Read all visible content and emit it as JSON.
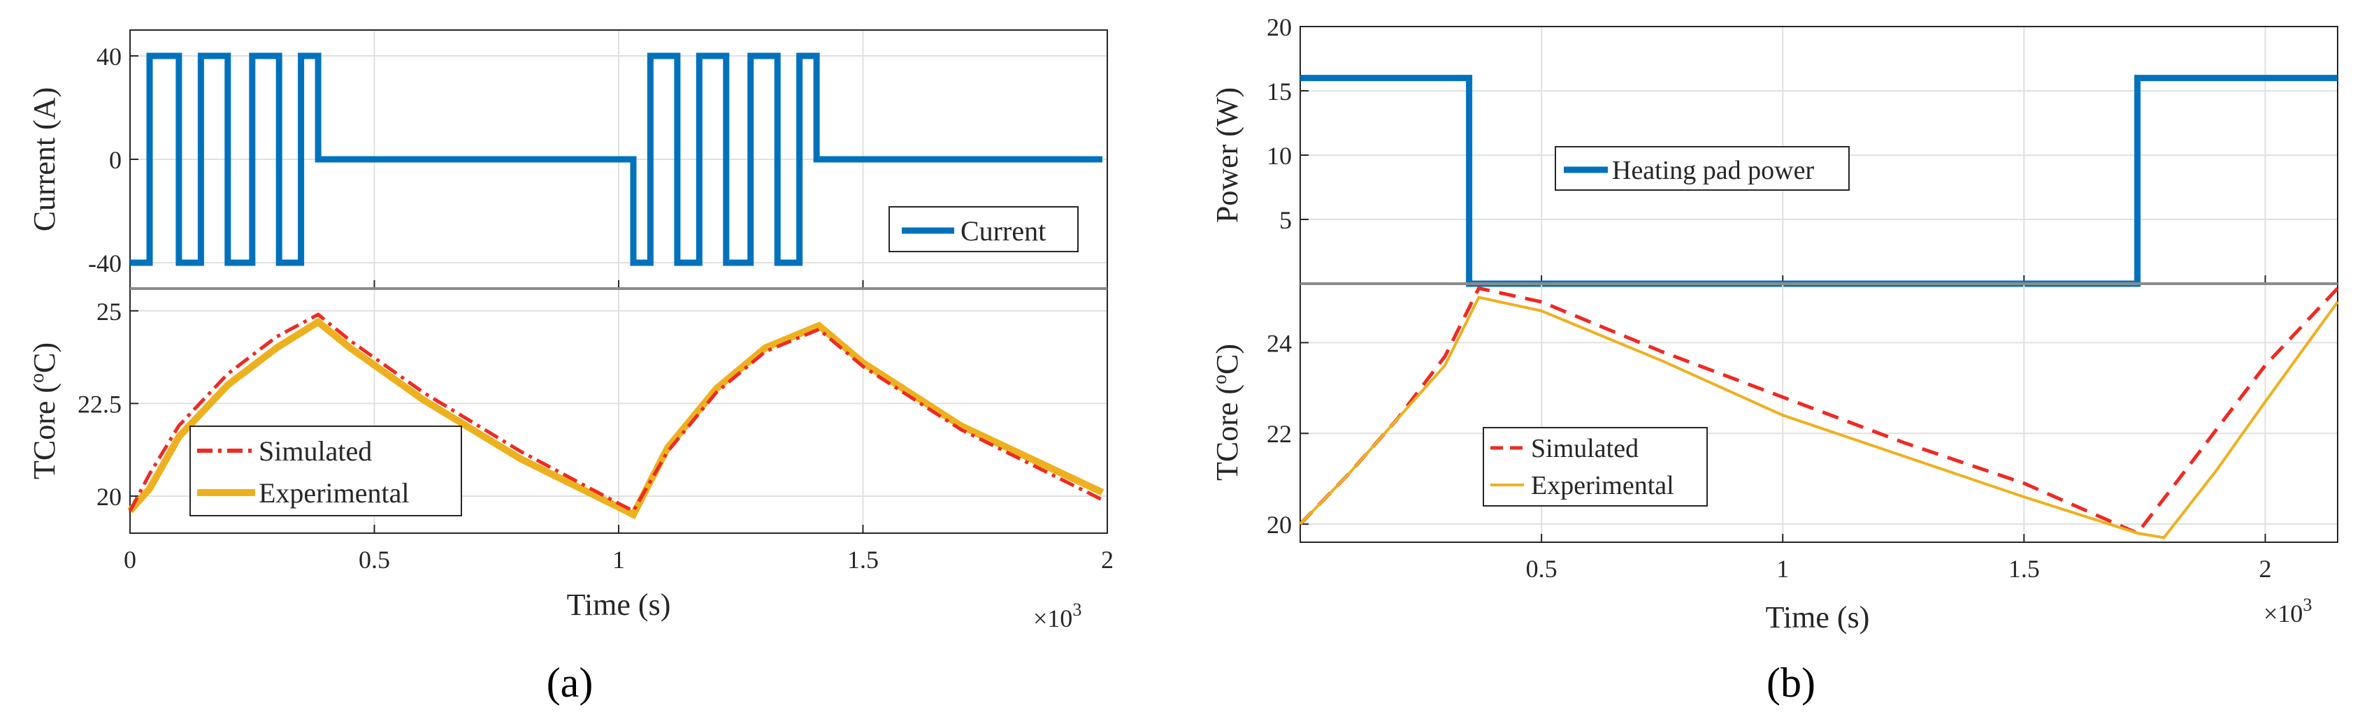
{
  "panels": {
    "a": {
      "label": "(a)"
    },
    "b": {
      "label": "(b)"
    }
  },
  "colors": {
    "blue": "#0072BD",
    "red": "#EE2A24",
    "orange": "#EDB120"
  },
  "chart_data": [
    {
      "type": "line",
      "panel": "a",
      "title": "",
      "xlabel": "Time (s)",
      "ylabel": "Current (A)",
      "x_multiplier": "×10",
      "x_multiplier_exp": "3",
      "xlim": [
        0,
        2
      ],
      "ylim": [
        -50,
        50
      ],
      "xticks": [
        0,
        0.5,
        1,
        1.5,
        2
      ],
      "xtick_labels": [
        "0",
        "0.5",
        "1",
        "1.5",
        "2"
      ],
      "yticks": [
        -40,
        0,
        40
      ],
      "ytick_labels": [
        "-40",
        "0",
        "40"
      ],
      "legend_position": "bottom-right",
      "series": [
        {
          "name": "Current",
          "color": "#0072BD",
          "x": [
            0,
            0.04,
            0.04,
            0.1,
            0.1,
            0.145,
            0.145,
            0.2,
            0.2,
            0.25,
            0.25,
            0.305,
            0.305,
            0.35,
            0.35,
            0.385,
            0.385,
            1.03,
            1.03,
            1.065,
            1.065,
            1.12,
            1.12,
            1.165,
            1.165,
            1.22,
            1.22,
            1.27,
            1.27,
            1.325,
            1.325,
            1.37,
            1.37,
            1.405,
            1.405,
            1.99
          ],
          "y": [
            -40,
            -40,
            40,
            40,
            -40,
            -40,
            40,
            40,
            -40,
            -40,
            40,
            40,
            -40,
            -40,
            40,
            40,
            0,
            0,
            -40,
            -40,
            40,
            40,
            -40,
            -40,
            40,
            40,
            -40,
            -40,
            40,
            40,
            -40,
            -40,
            40,
            40,
            0,
            0
          ]
        }
      ]
    },
    {
      "type": "line",
      "panel": "a",
      "title": "",
      "xlabel": "Time (s)",
      "ylabel": "TCore (°C)",
      "ylabel_main": "TCore (",
      "ylabel_sup": "o",
      "ylabel_tail": "C)",
      "xlim": [
        0,
        2
      ],
      "ylim": [
        19,
        25.6
      ],
      "xticks": [
        0,
        0.5,
        1,
        1.5,
        2
      ],
      "yticks": [
        20,
        22.5,
        25
      ],
      "ytick_labels": [
        "20",
        "22.5",
        "25"
      ],
      "legend_position": "bottom-left",
      "series": [
        {
          "name": "Simulated",
          "color": "#EE2A24",
          "style": "dashdot",
          "x": [
            0,
            0.04,
            0.1,
            0.2,
            0.3,
            0.385,
            0.45,
            0.6,
            0.8,
            1.0,
            1.03,
            1.1,
            1.2,
            1.3,
            1.41,
            1.5,
            1.7,
            1.99
          ],
          "y": [
            19.6,
            20.6,
            21.9,
            23.3,
            24.3,
            24.9,
            24.2,
            22.8,
            21.2,
            19.8,
            19.6,
            21.2,
            22.8,
            23.9,
            24.5,
            23.5,
            21.8,
            19.9
          ]
        },
        {
          "name": "Experimental",
          "color": "#EDB120",
          "style": "solid",
          "x": [
            0,
            0.04,
            0.1,
            0.2,
            0.3,
            0.385,
            0.45,
            0.6,
            0.8,
            1.0,
            1.03,
            1.1,
            1.2,
            1.3,
            1.41,
            1.5,
            1.7,
            1.99
          ],
          "y": [
            19.6,
            20.2,
            21.6,
            23.0,
            24.0,
            24.7,
            24.0,
            22.6,
            21.0,
            19.7,
            19.5,
            21.3,
            22.9,
            24.0,
            24.6,
            23.6,
            21.9,
            20.1
          ]
        }
      ]
    },
    {
      "type": "line",
      "panel": "b",
      "title": "",
      "xlabel": "Time (s)",
      "ylabel": "Power (W)",
      "x_multiplier": "×10",
      "x_multiplier_exp": "3",
      "xlim": [
        0,
        2.15
      ],
      "ylim": [
        0,
        20
      ],
      "xticks": [
        0.5,
        1,
        1.5,
        2
      ],
      "xtick_labels": [
        "0.5",
        "1",
        "1.5",
        "2"
      ],
      "yticks": [
        5,
        10,
        15,
        20
      ],
      "ytick_labels": [
        "5",
        "10",
        "15",
        "20"
      ],
      "legend_position": "center-left",
      "series": [
        {
          "name": "Heating pad power",
          "color": "#0072BD",
          "x": [
            0,
            0.35,
            0.35,
            1.735,
            1.735,
            2.15
          ],
          "y": [
            16,
            16,
            0,
            0,
            16,
            16
          ]
        }
      ]
    },
    {
      "type": "line",
      "panel": "b",
      "title": "",
      "xlabel": "Time (s)",
      "ylabel": "TCore (°C)",
      "ylabel_main": "TCore (",
      "ylabel_sup": "o",
      "ylabel_tail": "C)",
      "xlim": [
        0,
        2.15
      ],
      "ylim": [
        19.6,
        25.3
      ],
      "xticks": [
        0.5,
        1,
        1.5,
        2
      ],
      "yticks": [
        20,
        22,
        24
      ],
      "ytick_labels": [
        "20",
        "22",
        "24"
      ],
      "legend_position": "bottom-left",
      "series": [
        {
          "name": "Simulated",
          "color": "#EE2A24",
          "style": "dashed",
          "x": [
            0,
            0.1,
            0.2,
            0.3,
            0.37,
            0.5,
            0.75,
            1.0,
            1.25,
            1.5,
            1.735,
            1.8,
            1.9,
            2.0,
            2.15
          ],
          "y": [
            20,
            21.1,
            22.3,
            23.7,
            25.2,
            24.9,
            23.8,
            22.8,
            21.8,
            20.9,
            19.8,
            20.7,
            22.1,
            23.5,
            25.2
          ]
        },
        {
          "name": "Experimental",
          "color": "#EDB120",
          "style": "solid",
          "x": [
            0,
            0.1,
            0.2,
            0.3,
            0.37,
            0.5,
            0.75,
            1.0,
            1.25,
            1.5,
            1.735,
            1.79,
            1.9,
            2.0,
            2.15
          ],
          "y": [
            20,
            21.1,
            22.3,
            23.5,
            25.0,
            24.7,
            23.6,
            22.4,
            21.5,
            20.6,
            19.8,
            19.7,
            21.2,
            22.7,
            24.9
          ]
        }
      ]
    }
  ]
}
